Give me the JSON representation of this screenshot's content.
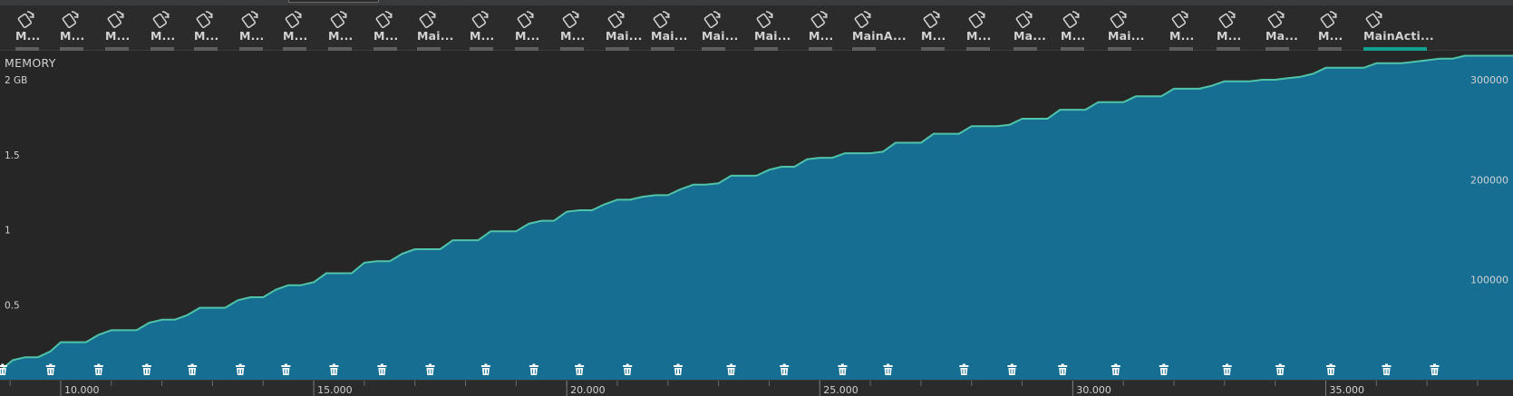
{
  "events": [
    {
      "label": "M...",
      "active": false
    },
    {
      "label": "M...",
      "active": false
    },
    {
      "label": "M...",
      "active": false
    },
    {
      "label": "M...",
      "active": false
    },
    {
      "label": "M...",
      "active": false
    },
    {
      "label": "M...",
      "active": false
    },
    {
      "label": "M...",
      "active": false
    },
    {
      "label": "M...",
      "active": false
    },
    {
      "label": "M...",
      "active": false
    },
    {
      "label": "Mai...",
      "active": false
    },
    {
      "label": "M...",
      "active": false
    },
    {
      "label": "M...",
      "active": false
    },
    {
      "label": "M...",
      "active": false
    },
    {
      "label": "Mai...",
      "active": false
    },
    {
      "label": "Mai...",
      "active": false
    },
    {
      "label": "Mai...",
      "active": false
    },
    {
      "label": "Mai...",
      "active": false
    },
    {
      "label": "M...",
      "active": false
    },
    {
      "label": "MainA...",
      "active": false
    },
    {
      "label": "M...",
      "active": false
    },
    {
      "label": "M...",
      "active": false
    },
    {
      "label": "Ma...",
      "active": false
    },
    {
      "label": "M...",
      "active": false
    },
    {
      "label": "Mai...",
      "active": false
    },
    {
      "label": "M...",
      "active": false
    },
    {
      "label": "M...",
      "active": false
    },
    {
      "label": "Ma...",
      "active": false
    },
    {
      "label": "M...",
      "active": false
    },
    {
      "label": "MainActi...",
      "active": true
    }
  ],
  "event_icon": "rotate-device-icon",
  "gc_icon": "trash-icon",
  "colors": {
    "background": "#262626",
    "area_fill": "#166f93",
    "line": "#4fc4a8",
    "text": "#d2d2d2",
    "active_tab": "#14a090"
  },
  "chart_data": {
    "type": "area",
    "title": "MEMORY",
    "left_axis": {
      "unit": "GB",
      "ticks": [
        {
          "value": 2,
          "label": "2 GB"
        },
        {
          "value": 1.5,
          "label": "1.5"
        },
        {
          "value": 1,
          "label": "1"
        },
        {
          "value": 0.5,
          "label": "0.5"
        }
      ],
      "range": [
        0,
        2
      ]
    },
    "right_axis": {
      "ticks": [
        {
          "value": 300000,
          "label": "300000"
        },
        {
          "value": 200000,
          "label": "200000"
        },
        {
          "value": 100000,
          "label": "100000"
        }
      ],
      "range": [
        0,
        300000
      ]
    },
    "x_axis": {
      "range": [
        8.8,
        38.7
      ],
      "major_ticks": [
        {
          "value": 10,
          "label": "10.000"
        },
        {
          "value": 15,
          "label": "15.000"
        },
        {
          "value": 20,
          "label": "20.000"
        },
        {
          "value": 25,
          "label": "25.000"
        },
        {
          "value": 30,
          "label": "30.000"
        },
        {
          "value": 35,
          "label": "35.000"
        }
      ],
      "minor_step": 1
    },
    "series": [
      {
        "x": [
          8.8,
          9.05,
          9.3,
          9.55,
          9.8,
          10.0,
          10.25,
          10.5,
          10.75,
          11.0,
          11.3,
          11.5,
          11.75,
          12.0,
          12.25,
          12.5,
          12.75,
          13.0,
          13.25,
          13.5,
          13.75,
          14.0,
          14.25,
          14.5,
          14.75,
          15.0,
          15.25,
          15.5,
          15.75,
          16.0,
          16.25,
          16.5,
          16.75,
          17.0,
          17.25,
          17.5,
          17.75,
          18.0,
          18.25,
          18.5,
          18.75,
          19.0,
          19.25,
          19.5,
          19.75,
          20.0,
          20.25,
          20.5,
          20.75,
          21.0,
          21.25,
          21.5,
          21.75,
          22.0,
          22.25,
          22.5,
          22.75,
          23.0,
          23.25,
          23.5,
          23.75,
          24.0,
          24.25,
          24.5,
          24.75,
          25.0,
          25.25,
          25.5,
          25.75,
          26.0,
          26.25,
          26.5,
          26.75,
          27.0,
          27.25,
          27.5,
          27.75,
          28.0,
          28.25,
          28.5,
          28.75,
          29.0,
          29.25,
          29.5,
          29.75,
          30.0,
          30.25,
          30.5,
          30.75,
          31.0,
          31.25,
          31.5,
          31.75,
          32.0,
          32.25,
          32.5,
          32.75,
          33.0,
          33.25,
          33.5,
          33.75,
          34.0,
          34.25,
          34.5,
          34.75,
          35.0,
          35.25,
          35.5,
          35.75,
          36.0,
          36.25,
          36.5,
          36.75,
          37.0,
          37.25,
          37.5,
          37.75,
          38.0,
          38.25,
          38.7
        ],
        "values": [
          0.06,
          0.13,
          0.15,
          0.15,
          0.19,
          0.25,
          0.25,
          0.25,
          0.3,
          0.33,
          0.33,
          0.33,
          0.38,
          0.4,
          0.4,
          0.43,
          0.48,
          0.48,
          0.48,
          0.53,
          0.55,
          0.55,
          0.6,
          0.63,
          0.63,
          0.65,
          0.71,
          0.71,
          0.71,
          0.78,
          0.79,
          0.79,
          0.84,
          0.87,
          0.87,
          0.87,
          0.93,
          0.93,
          0.93,
          0.99,
          0.99,
          0.99,
          1.04,
          1.06,
          1.06,
          1.12,
          1.13,
          1.13,
          1.17,
          1.2,
          1.2,
          1.22,
          1.23,
          1.23,
          1.27,
          1.3,
          1.3,
          1.31,
          1.36,
          1.36,
          1.36,
          1.4,
          1.42,
          1.42,
          1.47,
          1.48,
          1.48,
          1.51,
          1.51,
          1.51,
          1.52,
          1.58,
          1.58,
          1.58,
          1.64,
          1.64,
          1.64,
          1.69,
          1.69,
          1.69,
          1.7,
          1.74,
          1.74,
          1.74,
          1.8,
          1.8,
          1.8,
          1.85,
          1.85,
          1.85,
          1.89,
          1.89,
          1.89,
          1.94,
          1.94,
          1.94,
          1.96,
          1.99,
          1.99,
          1.99,
          2.0,
          2.0,
          2.01,
          2.02,
          2.04,
          2.08,
          2.08,
          2.08,
          2.08,
          2.11,
          2.11,
          2.11,
          2.12,
          2.13,
          2.14,
          2.14,
          2.16,
          2.16,
          2.16,
          2.16
        ]
      }
    ],
    "gc_events_x": [
      8.85,
      9.8,
      10.75,
      11.7,
      12.6,
      13.55,
      14.45,
      15.4,
      16.35,
      17.3,
      18.4,
      19.35,
      20.25,
      21.2,
      22.2,
      23.25,
      24.3,
      25.45,
      26.35,
      27.85,
      28.8,
      29.8,
      30.85,
      31.8,
      33.05,
      34.1,
      35.1,
      36.2,
      37.15
    ]
  }
}
